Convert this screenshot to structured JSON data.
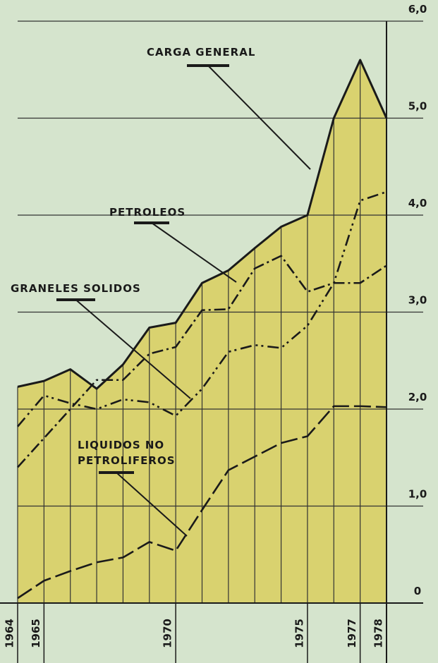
{
  "chart_data": {
    "type": "line",
    "x": [
      1964,
      1965,
      1966,
      1967,
      1968,
      1969,
      1970,
      1971,
      1972,
      1973,
      1974,
      1975,
      1976,
      1977,
      1978
    ],
    "series": [
      {
        "name": "CARGA GENERAL",
        "color": "#1a1a1a",
        "values": [
          2.23,
          2.29,
          2.41,
          2.21,
          2.46,
          2.84,
          2.89,
          3.3,
          3.43,
          3.66,
          3.88,
          4.0,
          5.0,
          5.6,
          5.0
        ]
      },
      {
        "name": "PETROLEOS",
        "color": "#1a1a1a",
        "values": [
          1.4,
          1.7,
          2.0,
          2.3,
          2.3,
          2.57,
          2.64,
          3.02,
          3.03,
          3.45,
          3.58,
          3.21,
          3.3,
          3.3,
          3.48
        ]
      },
      {
        "name": "GRANELES SOLIDOS",
        "color": "#1a1a1a",
        "values": [
          1.82,
          2.14,
          2.06,
          2.0,
          2.1,
          2.07,
          1.93,
          2.21,
          2.59,
          2.66,
          2.63,
          2.86,
          3.3,
          4.15,
          4.24
        ]
      },
      {
        "name": "LIQUIDOS NO PETROLIFEROS",
        "color": "#1a1a1a",
        "values": [
          0.05,
          0.23,
          0.33,
          0.42,
          0.47,
          0.63,
          0.54,
          0.96,
          1.37,
          1.51,
          1.65,
          1.72,
          2.03,
          2.03,
          2.02
        ]
      }
    ],
    "area_color": "#d9d26f",
    "xlim": [
      1964,
      1978
    ],
    "xticks": [
      1964,
      1965,
      1970,
      1975,
      1977,
      1978
    ],
    "ylim": [
      0,
      6
    ],
    "yticks": [
      0,
      {
        "value": 1,
        "label": "1,0"
      },
      {
        "value": 2,
        "label": "2,0"
      },
      {
        "value": 3,
        "label": "3,0"
      },
      {
        "value": 4,
        "label": "4,0"
      },
      {
        "value": 5,
        "label": "5,0"
      },
      {
        "value": 6,
        "label": "6,0"
      }
    ],
    "grid": true
  }
}
